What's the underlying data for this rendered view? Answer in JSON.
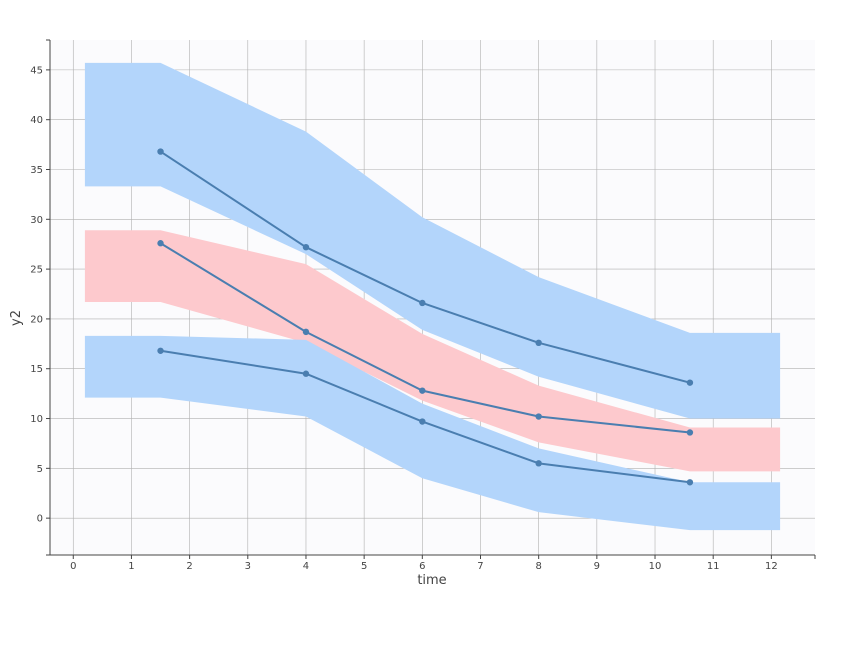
{
  "chart_data": {
    "type": "line",
    "title": "",
    "xlabel": "time",
    "ylabel": "y2",
    "xlim": [
      -0.4,
      12.75
    ],
    "ylim": [
      -3.7,
      48
    ],
    "x_ticks": [
      0,
      1,
      2,
      3,
      4,
      5,
      6,
      7,
      8,
      9,
      10,
      11,
      12
    ],
    "y_ticks": [
      0,
      5,
      10,
      15,
      20,
      25,
      30,
      35,
      40,
      45
    ],
    "grid": true,
    "legend": "none",
    "colors": {
      "plot_background": "#fbfbfd",
      "grid": "#b0b0b0",
      "axis": "#444444",
      "line": "#4a7eb0",
      "point": "#4a7eb0",
      "band_blue": "#b3d5fb",
      "band_red": "#fdc9cd"
    },
    "bands": [
      {
        "color": "blue",
        "x": [
          0.2,
          1.5,
          4,
          6,
          8,
          10.6,
          12.15
        ],
        "lower": [
          33.3,
          33.3,
          26.5,
          18.9,
          14.2,
          10.0,
          10.0
        ],
        "upper": [
          45.7,
          45.7,
          38.8,
          30.2,
          24.2,
          18.6,
          18.6
        ]
      },
      {
        "color": "red",
        "x": [
          0.2,
          1.5,
          4,
          6,
          8,
          10.6,
          12.15
        ],
        "lower": [
          21.7,
          21.7,
          17.6,
          11.8,
          7.6,
          4.7,
          4.7
        ],
        "upper": [
          28.9,
          28.9,
          25.5,
          18.5,
          13.3,
          9.1,
          9.1
        ]
      },
      {
        "color": "blue",
        "x": [
          0.2,
          1.5,
          4,
          6,
          8,
          10.6,
          12.15
        ],
        "lower": [
          12.1,
          12.1,
          10.2,
          4.0,
          0.6,
          -1.2,
          -1.2
        ],
        "upper": [
          18.3,
          18.3,
          17.9,
          11.5,
          7.0,
          3.6,
          3.6
        ]
      }
    ],
    "series": [
      {
        "x": [
          1.5,
          4,
          6,
          8,
          10.6
        ],
        "values": [
          36.8,
          27.2,
          21.6,
          17.6,
          13.6
        ]
      },
      {
        "x": [
          1.5,
          4,
          6,
          8,
          10.6
        ],
        "values": [
          27.6,
          18.7,
          12.8,
          10.2,
          8.6
        ]
      },
      {
        "x": [
          1.5,
          4,
          6,
          8,
          10.6
        ],
        "values": [
          16.8,
          14.5,
          9.7,
          5.5,
          3.6
        ]
      }
    ]
  }
}
